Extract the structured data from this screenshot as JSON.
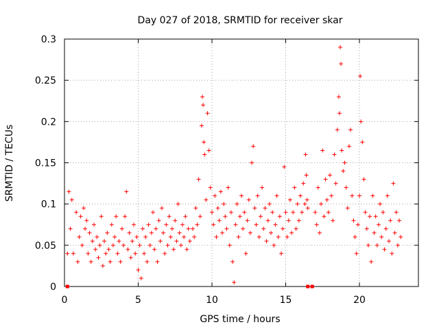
{
  "chart_data": {
    "type": "scatter",
    "title": "Day 027 of 2018, SRMTID for receiver skar",
    "xlabel": "GPS time / hours",
    "ylabel": "SRMTID / TECUs",
    "xlim": [
      0,
      24
    ],
    "ylim": [
      0,
      0.3
    ],
    "x_ticks": [
      0,
      5,
      10,
      15,
      20
    ],
    "y_ticks": [
      0,
      0.05,
      0.1,
      0.15,
      0.2,
      0.25,
      0.3
    ],
    "x_tick_labels": [
      "0",
      "5",
      "10",
      "15",
      "20"
    ],
    "y_tick_labels": [
      "0",
      "0.05",
      "0.1",
      "0.15",
      "0.2",
      "0.25",
      "0.3"
    ],
    "grid": true,
    "marker": "plus",
    "series_color": "#ff0000",
    "baseline_markers_x": [
      0.2,
      16.5,
      16.8
    ],
    "series": [
      {
        "name": "SRMTID",
        "points": [
          [
            0.2,
            0.04
          ],
          [
            0.3,
            0.115
          ],
          [
            0.4,
            0.07
          ],
          [
            0.5,
            0.105
          ],
          [
            0.6,
            0.04
          ],
          [
            0.8,
            0.09
          ],
          [
            0.9,
            0.03
          ],
          [
            1.0,
            0.06
          ],
          [
            1.1,
            0.085
          ],
          [
            1.2,
            0.05
          ],
          [
            1.3,
            0.095
          ],
          [
            1.4,
            0.07
          ],
          [
            1.5,
            0.08
          ],
          [
            1.6,
            0.04
          ],
          [
            1.7,
            0.065
          ],
          [
            1.8,
            0.03
          ],
          [
            1.9,
            0.055
          ],
          [
            2.0,
            0.075
          ],
          [
            2.1,
            0.045
          ],
          [
            2.2,
            0.06
          ],
          [
            2.3,
            0.035
          ],
          [
            2.4,
            0.05
          ],
          [
            2.5,
            0.085
          ],
          [
            2.6,
            0.025
          ],
          [
            2.7,
            0.055
          ],
          [
            2.8,
            0.04
          ],
          [
            2.9,
            0.065
          ],
          [
            3.0,
            0.045
          ],
          [
            3.1,
            0.03
          ],
          [
            3.2,
            0.075
          ],
          [
            3.3,
            0.05
          ],
          [
            3.4,
            0.06
          ],
          [
            3.5,
            0.085
          ],
          [
            3.6,
            0.04
          ],
          [
            3.7,
            0.055
          ],
          [
            3.8,
            0.03
          ],
          [
            3.9,
            0.07
          ],
          [
            4.0,
            0.05
          ],
          [
            4.1,
            0.085
          ],
          [
            4.2,
            0.115
          ],
          [
            4.3,
            0.045
          ],
          [
            4.4,
            0.065
          ],
          [
            4.5,
            0.035
          ],
          [
            4.6,
            0.055
          ],
          [
            4.7,
            0.075
          ],
          [
            4.8,
            0.04
          ],
          [
            4.9,
            0.06
          ],
          [
            5.0,
            0.02
          ],
          [
            5.1,
            0.05
          ],
          [
            5.2,
            0.01
          ],
          [
            5.3,
            0.07
          ],
          [
            5.4,
            0.04
          ],
          [
            5.5,
            0.06
          ],
          [
            5.6,
            0.03
          ],
          [
            5.7,
            0.075
          ],
          [
            5.8,
            0.05
          ],
          [
            5.9,
            0.065
          ],
          [
            6.0,
            0.09
          ],
          [
            6.1,
            0.045
          ],
          [
            6.2,
            0.07
          ],
          [
            6.3,
            0.03
          ],
          [
            6.4,
            0.08
          ],
          [
            6.5,
            0.055
          ],
          [
            6.6,
            0.095
          ],
          [
            6.7,
            0.065
          ],
          [
            6.8,
            0.04
          ],
          [
            6.9,
            0.075
          ],
          [
            7.0,
            0.05
          ],
          [
            7.1,
            0.085
          ],
          [
            7.2,
            0.06
          ],
          [
            7.3,
            0.07
          ],
          [
            7.4,
            0.045
          ],
          [
            7.5,
            0.08
          ],
          [
            7.6,
            0.055
          ],
          [
            7.7,
            0.1
          ],
          [
            7.8,
            0.065
          ],
          [
            7.9,
            0.05
          ],
          [
            8.0,
            0.075
          ],
          [
            8.1,
            0.06
          ],
          [
            8.2,
            0.085
          ],
          [
            8.3,
            0.045
          ],
          [
            8.4,
            0.07
          ],
          [
            8.5,
            0.055
          ],
          [
            8.7,
            0.07
          ],
          [
            8.8,
            0.06
          ],
          [
            8.9,
            0.095
          ],
          [
            9.0,
            0.075
          ],
          [
            9.1,
            0.13
          ],
          [
            9.2,
            0.085
          ],
          [
            9.3,
            0.195
          ],
          [
            9.35,
            0.23
          ],
          [
            9.4,
            0.22
          ],
          [
            9.45,
            0.175
          ],
          [
            9.5,
            0.16
          ],
          [
            9.6,
            0.105
          ],
          [
            9.7,
            0.21
          ],
          [
            9.8,
            0.165
          ],
          [
            9.9,
            0.12
          ],
          [
            10.0,
            0.09
          ],
          [
            10.1,
            0.075
          ],
          [
            10.2,
            0.11
          ],
          [
            10.3,
            0.06
          ],
          [
            10.4,
            0.095
          ],
          [
            10.5,
            0.08
          ],
          [
            10.6,
            0.115
          ],
          [
            10.7,
            0.065
          ],
          [
            10.8,
            0.1
          ],
          [
            10.9,
            0.085
          ],
          [
            11.0,
            0.07
          ],
          [
            11.1,
            0.12
          ],
          [
            11.2,
            0.05
          ],
          [
            11.3,
            0.09
          ],
          [
            11.4,
            0.03
          ],
          [
            11.5,
            0.005
          ],
          [
            11.6,
            0.075
          ],
          [
            11.7,
            0.1
          ],
          [
            11.8,
            0.06
          ],
          [
            11.9,
            0.085
          ],
          [
            12.0,
            0.11
          ],
          [
            12.1,
            0.07
          ],
          [
            12.2,
            0.09
          ],
          [
            12.3,
            0.04
          ],
          [
            12.4,
            0.08
          ],
          [
            12.5,
            0.105
          ],
          [
            12.6,
            0.065
          ],
          [
            12.7,
            0.15
          ],
          [
            12.8,
            0.17
          ],
          [
            12.9,
            0.095
          ],
          [
            13.0,
            0.075
          ],
          [
            13.1,
            0.11
          ],
          [
            13.2,
            0.06
          ],
          [
            13.3,
            0.085
          ],
          [
            13.4,
            0.12
          ],
          [
            13.5,
            0.07
          ],
          [
            13.6,
            0.095
          ],
          [
            13.7,
            0.055
          ],
          [
            13.8,
            0.08
          ],
          [
            13.9,
            0.1
          ],
          [
            14.0,
            0.065
          ],
          [
            14.1,
            0.09
          ],
          [
            14.2,
            0.05
          ],
          [
            14.3,
            0.075
          ],
          [
            14.4,
            0.11
          ],
          [
            14.5,
            0.06
          ],
          [
            14.6,
            0.085
          ],
          [
            14.7,
            0.04
          ],
          [
            14.8,
            0.07
          ],
          [
            14.9,
            0.145
          ],
          [
            15.0,
            0.09
          ],
          [
            15.1,
            0.06
          ],
          [
            15.2,
            0.08
          ],
          [
            15.3,
            0.105
          ],
          [
            15.4,
            0.065
          ],
          [
            15.5,
            0.09
          ],
          [
            15.6,
            0.12
          ],
          [
            15.7,
            0.07
          ],
          [
            15.8,
            0.1
          ],
          [
            15.9,
            0.08
          ],
          [
            16.0,
            0.11
          ],
          [
            16.1,
            0.09
          ],
          [
            16.2,
            0.125
          ],
          [
            16.3,
            0.1
          ],
          [
            16.35,
            0.16
          ],
          [
            16.4,
            0.135
          ],
          [
            16.45,
            0.105
          ],
          [
            16.5,
            0.095
          ],
          [
            17.0,
            0.09
          ],
          [
            17.1,
            0.075
          ],
          [
            17.2,
            0.12
          ],
          [
            17.3,
            0.065
          ],
          [
            17.4,
            0.1
          ],
          [
            17.5,
            0.165
          ],
          [
            17.6,
            0.085
          ],
          [
            17.7,
            0.13
          ],
          [
            17.8,
            0.105
          ],
          [
            17.9,
            0.09
          ],
          [
            18.0,
            0.135
          ],
          [
            18.1,
            0.11
          ],
          [
            18.2,
            0.08
          ],
          [
            18.3,
            0.16
          ],
          [
            18.4,
            0.125
          ],
          [
            18.5,
            0.19
          ],
          [
            18.6,
            0.23
          ],
          [
            18.65,
            0.21
          ],
          [
            18.7,
            0.29
          ],
          [
            18.75,
            0.27
          ],
          [
            18.8,
            0.165
          ],
          [
            18.9,
            0.14
          ],
          [
            19.0,
            0.15
          ],
          [
            19.1,
            0.12
          ],
          [
            19.2,
            0.095
          ],
          [
            19.3,
            0.17
          ],
          [
            19.4,
            0.19
          ],
          [
            19.5,
            0.11
          ],
          [
            19.6,
            0.08
          ],
          [
            19.7,
            0.06
          ],
          [
            19.8,
            0.04
          ],
          [
            19.9,
            0.075
          ],
          [
            20.0,
            0.11
          ],
          [
            20.05,
            0.255
          ],
          [
            20.1,
            0.2
          ],
          [
            20.2,
            0.175
          ],
          [
            20.3,
            0.13
          ],
          [
            20.4,
            0.09
          ],
          [
            20.5,
            0.07
          ],
          [
            20.6,
            0.05
          ],
          [
            20.7,
            0.085
          ],
          [
            20.8,
            0.03
          ],
          [
            20.9,
            0.11
          ],
          [
            21.0,
            0.065
          ],
          [
            21.1,
            0.085
          ],
          [
            21.2,
            0.05
          ],
          [
            21.3,
            0.075
          ],
          [
            21.4,
            0.1
          ],
          [
            21.5,
            0.06
          ],
          [
            21.6,
            0.09
          ],
          [
            21.7,
            0.045
          ],
          [
            21.8,
            0.07
          ],
          [
            21.9,
            0.11
          ],
          [
            22.0,
            0.055
          ],
          [
            22.1,
            0.08
          ],
          [
            22.2,
            0.04
          ],
          [
            22.3,
            0.125
          ],
          [
            22.4,
            0.065
          ],
          [
            22.5,
            0.09
          ],
          [
            22.6,
            0.05
          ],
          [
            22.7,
            0.08
          ],
          [
            22.8,
            0.06
          ]
        ]
      }
    ]
  }
}
